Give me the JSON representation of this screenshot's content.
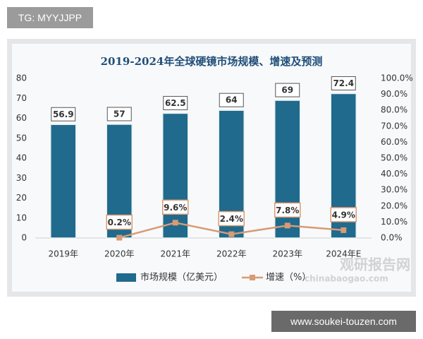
{
  "tag": "TG: MYYJJPP",
  "watermark": [
    "观研报告网",
    "chinabaogao.com"
  ],
  "footer": "www.soukei-touzen.com",
  "chart_data": {
    "type": "bar",
    "title": "2019-2024年全球硬镜市场规模、增速及预测",
    "categories": [
      "2019年",
      "2020年",
      "2021年",
      "2022年",
      "2023年",
      "2024年E"
    ],
    "series": [
      {
        "name": "市场规模（亿美元）",
        "type": "bar",
        "color": "#1f6a8d",
        "values": [
          56.9,
          57,
          62.5,
          64,
          69,
          72.4
        ]
      },
      {
        "name": "增速（%）",
        "type": "line",
        "axis": "y2",
        "color": "#d99a74",
        "values": [
          null,
          0.2,
          9.6,
          2.4,
          7.8,
          4.9
        ],
        "value_labels": [
          null,
          "0.2%",
          "9.6%",
          "2.4%",
          "7.8%",
          "4.9%"
        ]
      }
    ],
    "ylim": [
      0,
      80
    ],
    "yticks": [
      0,
      10,
      20,
      30,
      40,
      50,
      60,
      70,
      80
    ],
    "y2lim": [
      0,
      100
    ],
    "y2ticks": [
      {
        "value": 0,
        "label": "0.0%"
      },
      {
        "value": 10,
        "label": "10.0%"
      },
      {
        "value": 20,
        "label": "20.0%"
      },
      {
        "value": 30,
        "label": "30.0%"
      },
      {
        "value": 40,
        "label": "40.0%"
      },
      {
        "value": 50,
        "label": "50.0%"
      },
      {
        "value": 60,
        "label": "60.0%"
      },
      {
        "value": 70,
        "label": "70.0%"
      },
      {
        "value": 80,
        "label": "80.0%"
      },
      {
        "value": 90,
        "label": "90.0%"
      },
      {
        "value": 100,
        "label": "100.0%"
      }
    ],
    "legend": "bottom"
  }
}
